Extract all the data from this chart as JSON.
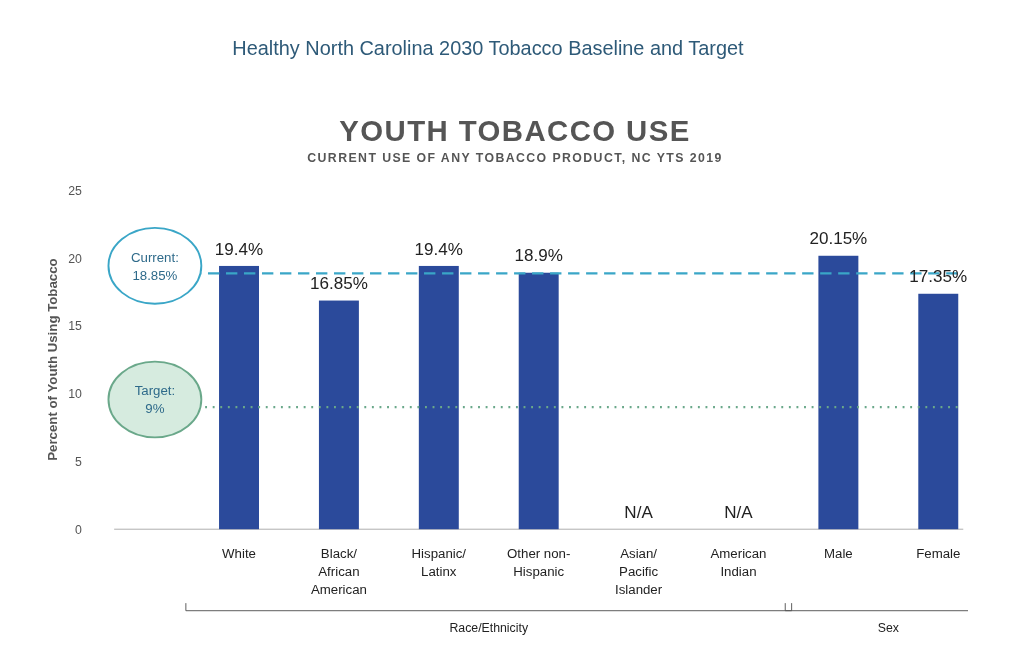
{
  "chart_data": {
    "type": "bar",
    "title": "Healthy North Carolina 2030 Tobacco Baseline and Target",
    "subtitle": "YOUTH TOBACCO USE",
    "annotations": [
      "CURRENT USE OF ANY TOBACCO PRODUCT, NC YTS 2019",
      "Race/Ethnicity",
      "Sex"
    ],
    "ylabel": "Percent of Youth Using Tobacco",
    "categories": [
      null,
      "White",
      "Black/\nAfrican\nAmerican",
      "Hispanic/\nLatinx",
      "Other non-\nHispanic",
      "Asian/\nPacific\nIslander",
      "American\nIndian",
      "Male",
      "Female"
    ],
    "values": [
      null,
      19.4,
      16.85,
      19.4,
      18.9,
      null,
      null,
      20.15,
      17.35
    ],
    "value_labels": [
      null,
      "19.4%",
      "16.85%",
      "19.4%",
      "18.9%",
      "N/A",
      "N/A",
      "20.15%",
      "17.35%"
    ],
    "color": "#2b4a9b",
    "ylim": [
      0,
      25
    ],
    "yticks": [
      0,
      5,
      10,
      15,
      20,
      25
    ],
    "grid": false,
    "ref_lines": [
      {
        "axis": "y",
        "value": 18.85,
        "label": "Current:\n18.85%",
        "color": "#3aa6c7",
        "line_style": "dashed"
      },
      {
        "axis": "y",
        "value": 9,
        "label": "Target:\n9%",
        "color": "#6aa88a",
        "line_style": "dotted"
      }
    ]
  }
}
